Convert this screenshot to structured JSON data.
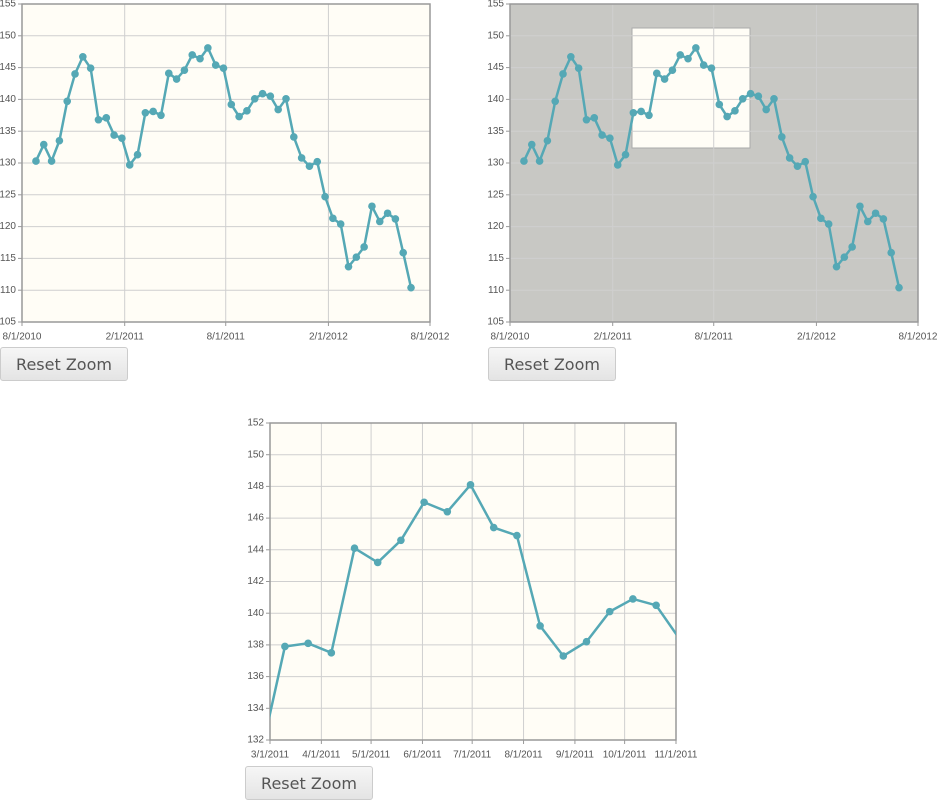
{
  "chart_data": [
    {
      "type": "line",
      "background": "#fffdf6",
      "grid": true,
      "x": [
        "8/26/2010",
        "9/9/2010",
        "9/23/2010",
        "10/7/2010",
        "10/21/2010",
        "11/4/2010",
        "11/18/2010",
        "12/2/2010",
        "12/16/2010",
        "12/30/2010",
        "1/13/2011",
        "1/27/2011",
        "2/10/2011",
        "2/24/2011",
        "3/10/2011",
        "3/24/2011",
        "4/7/2011",
        "4/21/2011",
        "5/5/2011",
        "5/19/2011",
        "6/2/2011",
        "6/16/2011",
        "6/30/2011",
        "7/14/2011",
        "7/28/2011",
        "8/11/2011",
        "8/25/2011",
        "9/8/2011",
        "9/22/2011",
        "10/6/2011",
        "10/20/2011",
        "11/3/2011",
        "11/17/2011",
        "12/1/2011",
        "12/15/2011",
        "12/29/2011",
        "1/12/2012",
        "1/26/2012",
        "2/9/2012",
        "2/23/2012",
        "3/8/2012",
        "3/22/2012",
        "4/5/2012",
        "4/19/2012",
        "5/3/2012",
        "5/17/2012",
        "5/31/2012",
        "6/14/2012",
        "6/28/2012"
      ],
      "series": [
        {
          "color": "#55a8b5",
          "values": [
            130.3,
            132.9,
            130.3,
            133.5,
            139.7,
            144.0,
            146.7,
            144.9,
            136.8,
            137.1,
            134.4,
            133.9,
            129.7,
            131.3,
            137.9,
            138.1,
            137.5,
            144.1,
            143.2,
            144.6,
            147.0,
            146.4,
            148.1,
            145.4,
            144.9,
            139.2,
            137.3,
            138.2,
            140.1,
            140.9,
            140.5,
            138.4,
            140.1,
            134.1,
            130.8,
            129.5,
            130.2,
            124.7,
            121.3,
            120.4,
            113.7,
            115.2,
            116.8,
            123.2,
            120.8,
            122.1,
            121.2,
            115.9,
            110.4
          ]
        }
      ],
      "xlim": [
        "8/1/2010",
        "8/1/2012"
      ],
      "xticks": [
        "8/1/2010",
        "2/1/2011",
        "8/1/2011",
        "2/1/2012",
        "8/1/2012"
      ],
      "ylim": [
        105,
        155
      ],
      "yticks": [
        105,
        110,
        115,
        120,
        125,
        130,
        135,
        140,
        145,
        150,
        155
      ]
    },
    {
      "type": "line",
      "background": "#c8c8c4",
      "grid": true,
      "x": [
        "8/26/2010",
        "9/9/2010",
        "9/23/2010",
        "10/7/2010",
        "10/21/2010",
        "11/4/2010",
        "11/18/2010",
        "12/2/2010",
        "12/16/2010",
        "12/30/2010",
        "1/13/2011",
        "1/27/2011",
        "2/10/2011",
        "2/24/2011",
        "3/10/2011",
        "3/24/2011",
        "4/7/2011",
        "4/21/2011",
        "5/5/2011",
        "5/19/2011",
        "6/2/2011",
        "6/16/2011",
        "6/30/2011",
        "7/14/2011",
        "7/28/2011",
        "8/11/2011",
        "8/25/2011",
        "9/8/2011",
        "9/22/2011",
        "10/6/2011",
        "10/20/2011",
        "11/3/2011",
        "11/17/2011",
        "12/1/2011",
        "12/15/2011",
        "12/29/2011",
        "1/12/2012",
        "1/26/2012",
        "2/9/2012",
        "2/23/2012",
        "3/8/2012",
        "3/22/2012",
        "4/5/2012",
        "4/19/2012",
        "5/3/2012",
        "5/17/2012",
        "5/31/2012",
        "6/14/2012",
        "6/28/2012"
      ],
      "series": [
        {
          "color": "#55a8b5",
          "values": [
            130.3,
            132.9,
            130.3,
            133.5,
            139.7,
            144.0,
            146.7,
            144.9,
            136.8,
            137.1,
            134.4,
            133.9,
            129.7,
            131.3,
            137.9,
            138.1,
            137.5,
            144.1,
            143.2,
            144.6,
            147.0,
            146.4,
            148.1,
            145.4,
            144.9,
            139.2,
            137.3,
            138.2,
            140.1,
            140.9,
            140.5,
            138.4,
            140.1,
            134.1,
            130.8,
            129.5,
            130.2,
            124.7,
            121.3,
            120.4,
            113.7,
            115.2,
            116.8,
            123.2,
            120.8,
            122.1,
            121.2,
            115.9,
            110.4
          ]
        }
      ],
      "xlim": [
        "8/1/2010",
        "8/1/2012"
      ],
      "xticks": [
        "8/1/2010",
        "2/1/2011",
        "8/1/2011",
        "2/1/2012",
        "8/1/2012"
      ],
      "ylim": [
        105,
        155
      ],
      "yticks": [
        105,
        110,
        115,
        120,
        125,
        130,
        135,
        140,
        145,
        150,
        155
      ]
    },
    {
      "type": "line",
      "background": "#fffdf6",
      "grid": true,
      "x": [
        "2/24/2011",
        "3/10/2011",
        "3/24/2011",
        "4/7/2011",
        "4/21/2011",
        "5/5/2011",
        "5/19/2011",
        "6/2/2011",
        "6/16/2011",
        "6/30/2011",
        "7/14/2011",
        "7/28/2011",
        "8/11/2011",
        "8/25/2011",
        "9/8/2011",
        "9/22/2011",
        "10/6/2011",
        "10/20/2011",
        "11/3/2011"
      ],
      "series": [
        {
          "color": "#55a8b5",
          "values": [
            131.3,
            137.9,
            138.1,
            137.5,
            144.1,
            143.2,
            144.6,
            147.0,
            146.4,
            148.1,
            145.4,
            144.9,
            139.2,
            137.3,
            138.2,
            140.1,
            140.9,
            140.5,
            138.4
          ]
        }
      ],
      "xlim": [
        "3/1/2011",
        "11/1/2011"
      ],
      "xticks": [
        "3/1/2011",
        "4/1/2011",
        "5/1/2011",
        "6/1/2011",
        "7/1/2011",
        "8/1/2011",
        "9/1/2011",
        "10/1/2011",
        "11/1/2011"
      ],
      "ylim": [
        132,
        152
      ],
      "yticks": [
        132,
        134,
        136,
        138,
        140,
        142,
        144,
        146,
        148,
        150,
        152
      ]
    }
  ],
  "buttons": [
    "Reset Zoom",
    "Reset Zoom",
    "Reset Zoom"
  ]
}
